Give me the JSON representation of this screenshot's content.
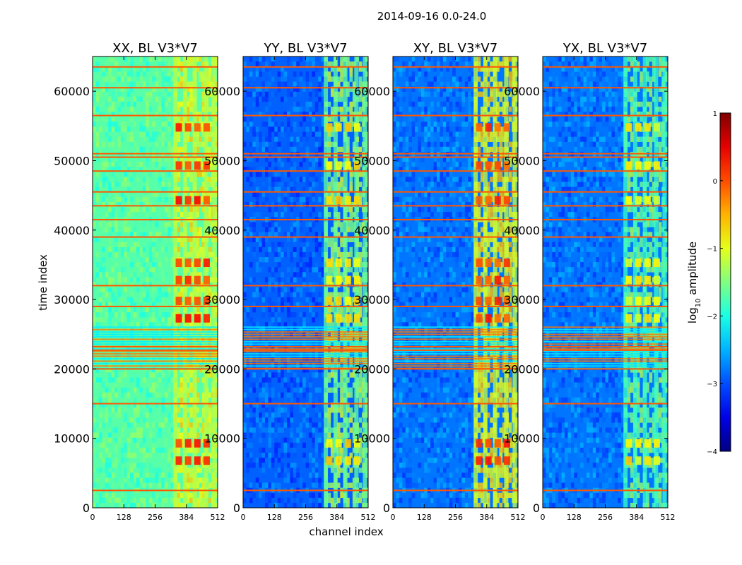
{
  "figure": {
    "suptitle": "2014-09-16 0.0-24.0"
  },
  "chart_data": {
    "type": "heatmap",
    "x_label": "channel index",
    "y_label": "time index",
    "xlim": [
      0,
      512
    ],
    "ylim": [
      0,
      65000
    ],
    "x_ticks": [
      0,
      128,
      256,
      384,
      512
    ],
    "y_ticks": [
      0,
      10000,
      20000,
      30000,
      40000,
      50000,
      60000
    ],
    "panels": [
      {
        "title": "XX, BL V3*V7",
        "polarization": "XX",
        "background_log10": -1.7,
        "band_log10": -0.9,
        "hot_log10": 0.4
      },
      {
        "title": "YY, BL V3*V7",
        "polarization": "YY",
        "background_log10": -2.9,
        "band_log10": -1.3,
        "hot_log10": -0.5
      },
      {
        "title": "XY, BL V3*V7",
        "polarization": "XY",
        "background_log10": -2.8,
        "band_log10": -0.8,
        "hot_log10": 0.3
      },
      {
        "title": "YX, BL V3*V7",
        "polarization": "YX",
        "background_log10": -2.8,
        "band_log10": -1.5,
        "hot_log10": -0.6
      }
    ],
    "signal_band_channels": [
      330,
      512
    ],
    "rfi_block_time": [
      20000,
      26000
    ],
    "rfi_lines_time": [
      2500,
      15000,
      20000,
      22700,
      23200,
      29000,
      32000,
      39000,
      41500,
      43500,
      45500,
      48500,
      50500,
      51000,
      56500,
      60500,
      63500
    ],
    "colorbar": {
      "label_prefix": "log",
      "label_sub": "10",
      "label_suffix": " amplitude",
      "range": [
        -4,
        1
      ],
      "ticks": [
        -4,
        -3,
        -2,
        -1,
        0,
        1
      ],
      "tick_labels": [
        "−4",
        "−3",
        "−2",
        "−1",
        "0",
        "1"
      ]
    }
  }
}
